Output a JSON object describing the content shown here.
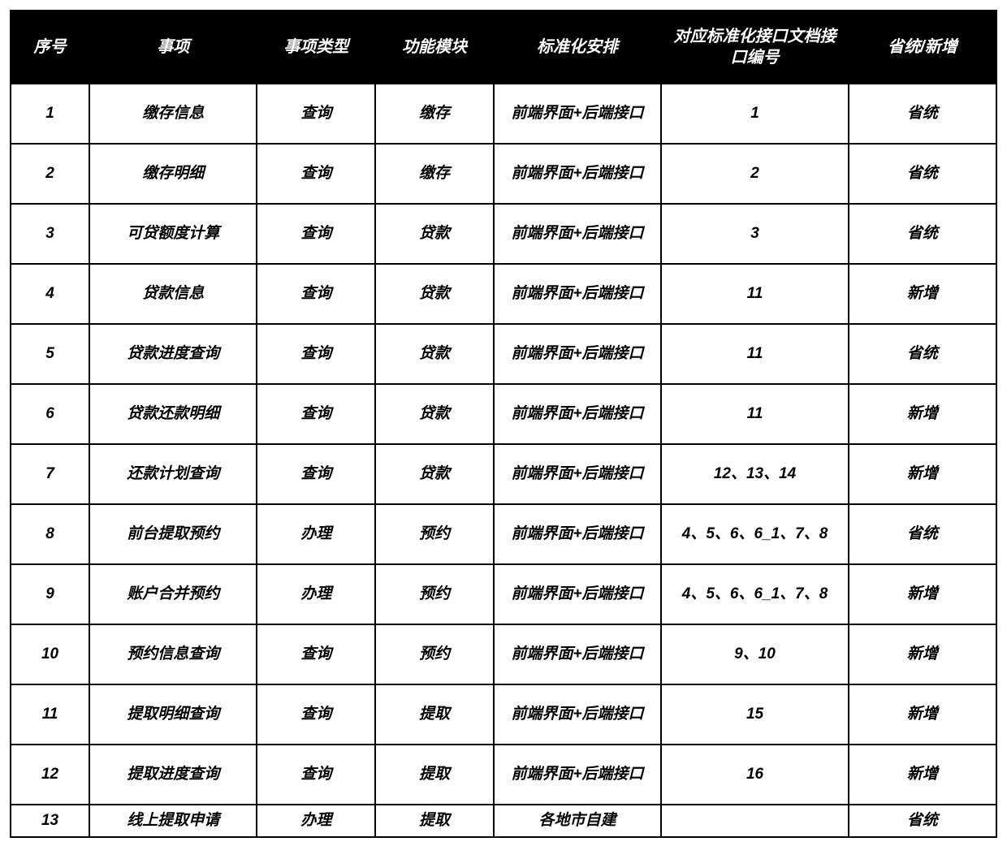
{
  "table": {
    "columns": [
      {
        "key": "seq",
        "label": "序号",
        "class": "col-seq"
      },
      {
        "key": "item",
        "label": "事项",
        "class": "col-item"
      },
      {
        "key": "type",
        "label": "事项类型",
        "class": "col-type"
      },
      {
        "key": "module",
        "label": "功能模块",
        "class": "col-module"
      },
      {
        "key": "arrange",
        "label": "标准化安排",
        "class": "col-arrange"
      },
      {
        "key": "docnum",
        "label": "对应标准化接口文档接口编号",
        "class": "col-docnum"
      },
      {
        "key": "status",
        "label": "省统/新增",
        "class": "col-status"
      }
    ],
    "rows": [
      {
        "seq": "1",
        "item": "缴存信息",
        "type": "查询",
        "module": "缴存",
        "arrange": "前端界面+后端接口",
        "docnum": "1",
        "status": "省统"
      },
      {
        "seq": "2",
        "item": "缴存明细",
        "type": "查询",
        "module": "缴存",
        "arrange": "前端界面+后端接口",
        "docnum": "2",
        "status": "省统"
      },
      {
        "seq": "3",
        "item": "可贷额度计算",
        "type": "查询",
        "module": "贷款",
        "arrange": "前端界面+后端接口",
        "docnum": "3",
        "status": "省统"
      },
      {
        "seq": "4",
        "item": "贷款信息",
        "type": "查询",
        "module": "贷款",
        "arrange": "前端界面+后端接口",
        "docnum": "11",
        "status": "新增"
      },
      {
        "seq": "5",
        "item": "贷款进度查询",
        "type": "查询",
        "module": "贷款",
        "arrange": "前端界面+后端接口",
        "docnum": "11",
        "status": "省统"
      },
      {
        "seq": "6",
        "item": "贷款还款明细",
        "type": "查询",
        "module": "贷款",
        "arrange": "前端界面+后端接口",
        "docnum": "11",
        "status": "新增"
      },
      {
        "seq": "7",
        "item": "还款计划查询",
        "type": "查询",
        "module": "贷款",
        "arrange": "前端界面+后端接口",
        "docnum": "12、13、14",
        "status": "新增"
      },
      {
        "seq": "8",
        "item": "前台提取预约",
        "type": "办理",
        "module": "预约",
        "arrange": "前端界面+后端接口",
        "docnum": "4、5、6、6_1、7、8",
        "status": "省统"
      },
      {
        "seq": "9",
        "item": "账户合并预约",
        "type": "办理",
        "module": "预约",
        "arrange": "前端界面+后端接口",
        "docnum": "4、5、6、6_1、7、8",
        "status": "新增"
      },
      {
        "seq": "10",
        "item": "预约信息查询",
        "type": "查询",
        "module": "预约",
        "arrange": "前端界面+后端接口",
        "docnum": "9、10",
        "status": "新增"
      },
      {
        "seq": "11",
        "item": "提取明细查询",
        "type": "查询",
        "module": "提取",
        "arrange": "前端界面+后端接口",
        "docnum": "15",
        "status": "新增"
      },
      {
        "seq": "12",
        "item": "提取进度查询",
        "type": "查询",
        "module": "提取",
        "arrange": "前端界面+后端接口",
        "docnum": "16",
        "status": "新增"
      },
      {
        "seq": "13",
        "item": "线上提取申请",
        "type": "办理",
        "module": "提取",
        "arrange": "各地市自建",
        "docnum": "",
        "status": "省统"
      }
    ],
    "header_bg": "#000000",
    "header_fg": "#ffffff",
    "cell_bg": "#ffffff",
    "cell_fg": "#000000",
    "border_color": "#000000",
    "font_style": "italic",
    "font_weight": "bold",
    "header_fontsize": 20,
    "cell_fontsize": 19
  }
}
